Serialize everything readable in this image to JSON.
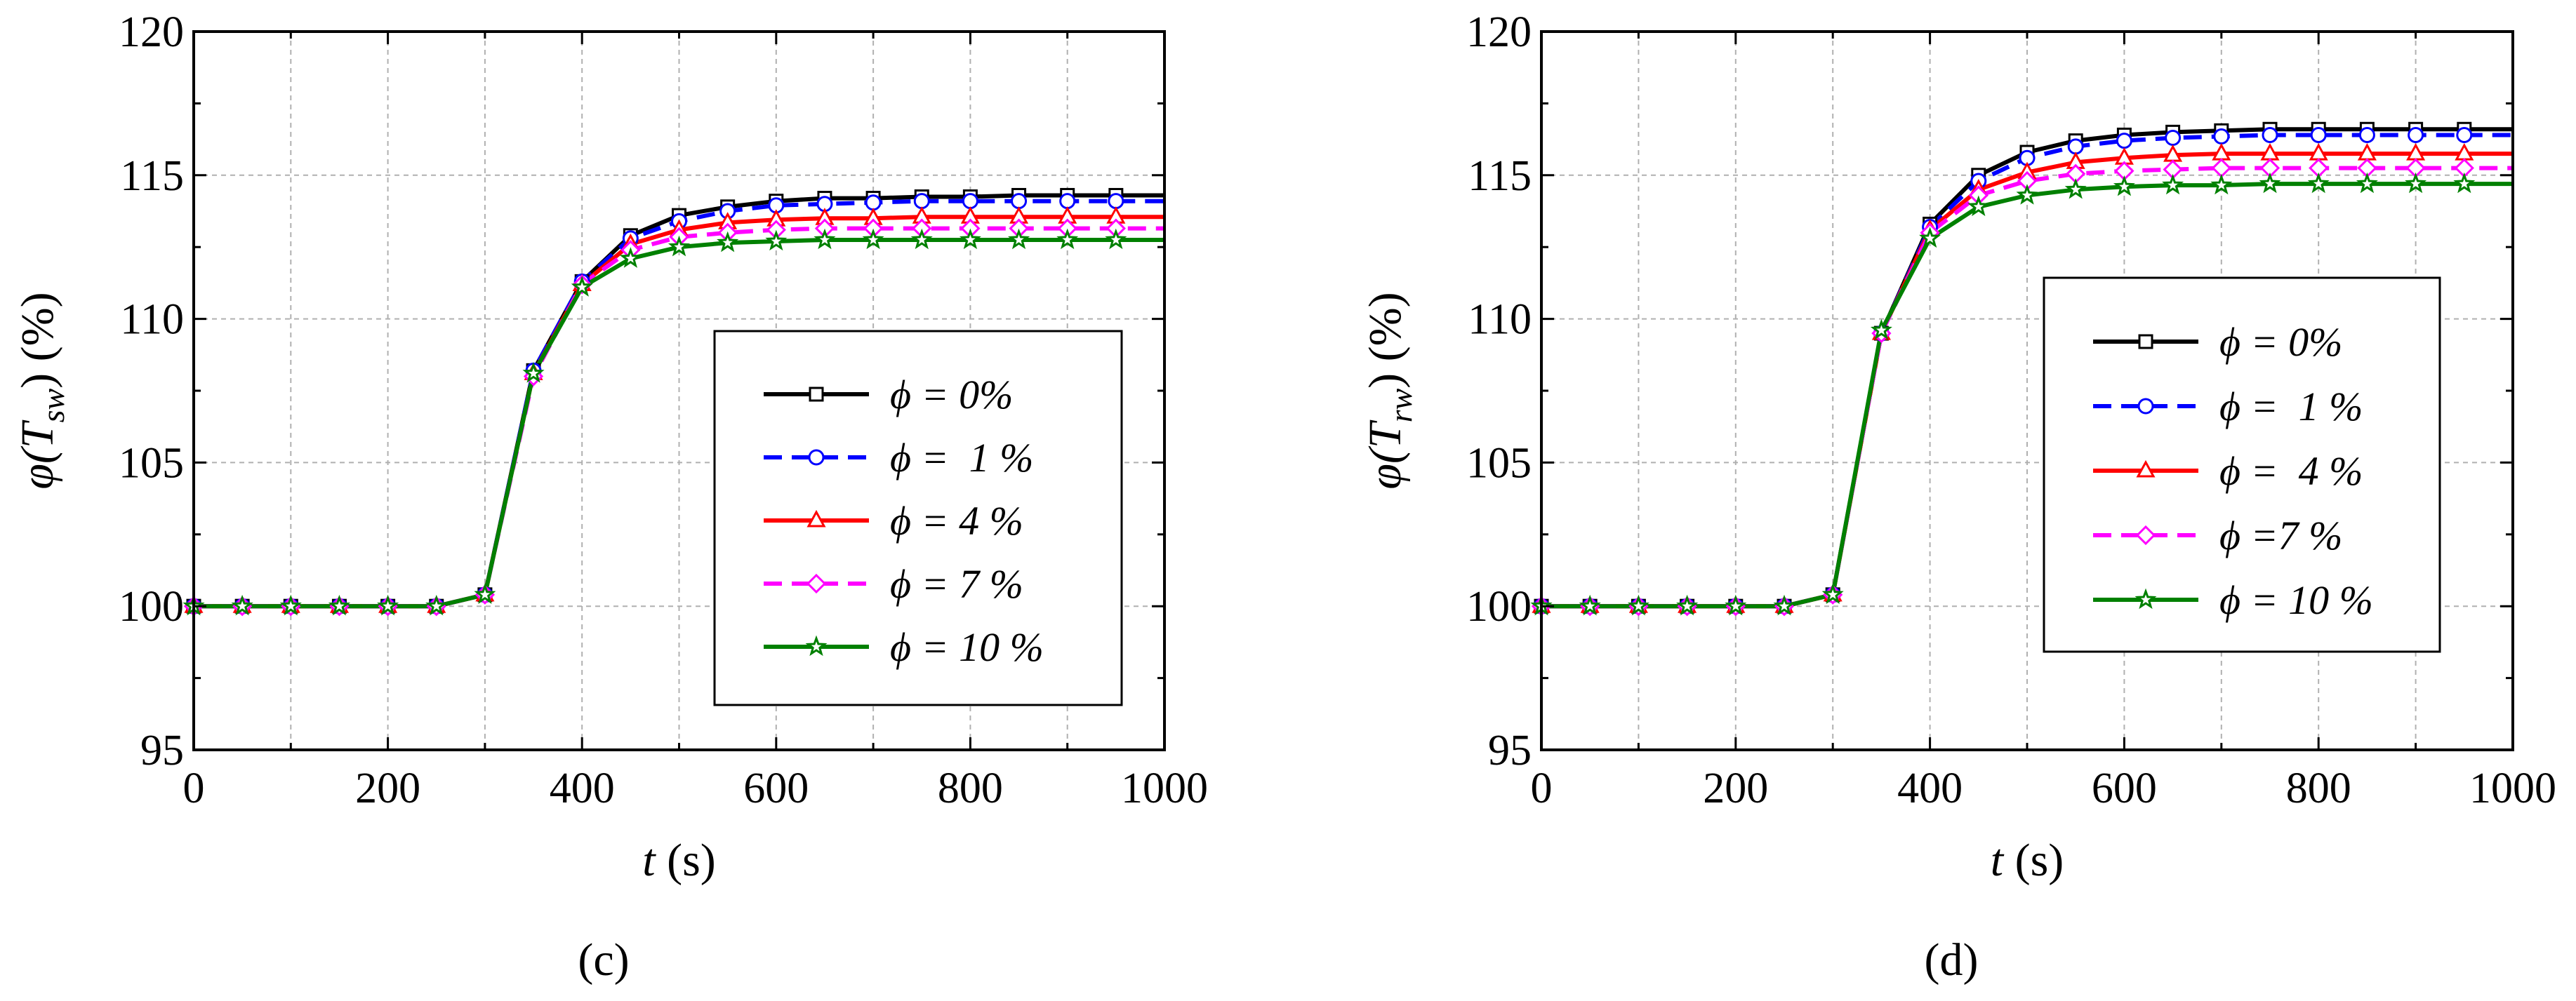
{
  "figure": {
    "colors": {
      "black": "#000000",
      "blue": "#0000ff",
      "red": "#ff0000",
      "magenta": "#ff00ff",
      "green": "#008000",
      "grid": "#b0b0b0"
    }
  },
  "chart_data": [
    {
      "panel_label": "(c)",
      "type": "line",
      "xlabel": "t (s)",
      "ylabel": "φ(T_sw) (%)",
      "xlabel_main": "t",
      "xlabel_unit": " (s)",
      "ylabel_main": "φ(T",
      "ylabel_sub": "sw",
      "ylabel_tail": ") (%)",
      "xlim": [
        0,
        1000
      ],
      "ylim": [
        95,
        120
      ],
      "xticks": [
        0,
        200,
        400,
        600,
        800,
        1000
      ],
      "yticks": [
        95,
        100,
        105,
        110,
        115,
        120
      ],
      "grid": true,
      "legend_position": "center-right",
      "x": [
        0,
        50,
        100,
        150,
        200,
        250,
        300,
        350,
        400,
        450,
        500,
        550,
        600,
        650,
        700,
        750,
        800,
        850,
        900,
        950,
        1000
      ],
      "series": [
        {
          "name": "ϕ = 0%",
          "legend_text": "ϕ = 0%",
          "color": "#000000",
          "dashed": false,
          "marker": "square",
          "values": [
            100,
            100,
            100,
            100,
            100,
            100,
            100.4,
            108.2,
            111.3,
            112.9,
            113.6,
            113.9,
            114.1,
            114.2,
            114.2,
            114.25,
            114.25,
            114.3,
            114.3,
            114.3,
            114.3
          ]
        },
        {
          "name": "ϕ = 1 %",
          "legend_text": "ϕ =  1 %",
          "color": "#0000ff",
          "dashed": true,
          "marker": "circle",
          "values": [
            100,
            100,
            100,
            100,
            100,
            100,
            100.4,
            108.2,
            111.3,
            112.8,
            113.4,
            113.75,
            113.95,
            114.0,
            114.05,
            114.1,
            114.1,
            114.1,
            114.1,
            114.1,
            114.1
          ]
        },
        {
          "name": "ϕ = 4 %",
          "legend_text": "ϕ = 4 %",
          "color": "#ff0000",
          "dashed": false,
          "marker": "triangle",
          "values": [
            100,
            100,
            100,
            100,
            100,
            100,
            100.4,
            108.1,
            111.2,
            112.6,
            113.1,
            113.35,
            113.45,
            113.5,
            113.5,
            113.55,
            113.55,
            113.55,
            113.55,
            113.55,
            113.55
          ]
        },
        {
          "name": "ϕ = 7 %",
          "legend_text": "ϕ = 7 %",
          "color": "#ff00ff",
          "dashed": true,
          "marker": "diamond",
          "values": [
            100,
            100,
            100,
            100,
            100,
            100,
            100.4,
            108.0,
            111.2,
            112.4,
            112.85,
            113.0,
            113.1,
            113.15,
            113.15,
            113.15,
            113.15,
            113.15,
            113.15,
            113.15,
            113.15
          ]
        },
        {
          "name": "ϕ = 10 %",
          "legend_text": "ϕ = 10 %",
          "color": "#008000",
          "dashed": false,
          "marker": "star",
          "values": [
            100,
            100,
            100,
            100,
            100,
            100,
            100.4,
            108.1,
            111.1,
            112.1,
            112.5,
            112.65,
            112.7,
            112.75,
            112.75,
            112.75,
            112.75,
            112.75,
            112.75,
            112.75,
            112.75
          ]
        }
      ]
    },
    {
      "panel_label": "(d)",
      "type": "line",
      "xlabel": "t (s)",
      "ylabel": "φ(T_rw) (%)",
      "xlabel_main": "t",
      "xlabel_unit": " (s)",
      "ylabel_main": "φ(T",
      "ylabel_sub": "rw",
      "ylabel_tail": ") (%)",
      "xlim": [
        0,
        1000
      ],
      "ylim": [
        95,
        120
      ],
      "xticks": [
        0,
        200,
        400,
        600,
        800,
        1000
      ],
      "yticks": [
        95,
        100,
        105,
        110,
        115,
        120
      ],
      "grid": true,
      "legend_position": "center-right",
      "x": [
        0,
        50,
        100,
        150,
        200,
        250,
        300,
        350,
        400,
        450,
        500,
        550,
        600,
        650,
        700,
        750,
        800,
        850,
        900,
        950,
        1000
      ],
      "series": [
        {
          "name": "ϕ = 0%",
          "legend_text": "ϕ = 0%",
          "color": "#000000",
          "dashed": false,
          "marker": "square",
          "values": [
            100,
            100,
            100,
            100,
            100,
            100,
            100.4,
            109.5,
            113.3,
            115.0,
            115.8,
            116.2,
            116.4,
            116.5,
            116.55,
            116.6,
            116.6,
            116.6,
            116.6,
            116.6,
            116.6
          ]
        },
        {
          "name": "ϕ = 1 %",
          "legend_text": "ϕ =  1 %",
          "color": "#0000ff",
          "dashed": true,
          "marker": "circle",
          "values": [
            100,
            100,
            100,
            100,
            100,
            100,
            100.4,
            109.5,
            113.2,
            114.8,
            115.6,
            116.0,
            116.2,
            116.3,
            116.35,
            116.4,
            116.4,
            116.4,
            116.4,
            116.4,
            116.4
          ]
        },
        {
          "name": "ϕ = 4 %",
          "legend_text": "ϕ =  4 %",
          "color": "#ff0000",
          "dashed": false,
          "marker": "triangle",
          "values": [
            100,
            100,
            100,
            100,
            100,
            100,
            100.4,
            109.5,
            113.1,
            114.5,
            115.1,
            115.45,
            115.6,
            115.7,
            115.75,
            115.75,
            115.75,
            115.75,
            115.75,
            115.75,
            115.75
          ]
        },
        {
          "name": "ϕ = 7 %",
          "legend_text": "ϕ =7 %",
          "color": "#ff00ff",
          "dashed": true,
          "marker": "diamond",
          "values": [
            100,
            100,
            100,
            100,
            100,
            100,
            100.4,
            109.5,
            113.0,
            114.3,
            114.8,
            115.05,
            115.15,
            115.2,
            115.25,
            115.25,
            115.25,
            115.25,
            115.25,
            115.25,
            115.25
          ]
        },
        {
          "name": "ϕ = 10 %",
          "legend_text": "ϕ = 10 %",
          "color": "#008000",
          "dashed": false,
          "marker": "star",
          "values": [
            100,
            100,
            100,
            100,
            100,
            100,
            100.4,
            109.6,
            112.8,
            113.9,
            114.3,
            114.5,
            114.6,
            114.65,
            114.65,
            114.7,
            114.7,
            114.7,
            114.7,
            114.7,
            114.7
          ]
        }
      ]
    }
  ]
}
